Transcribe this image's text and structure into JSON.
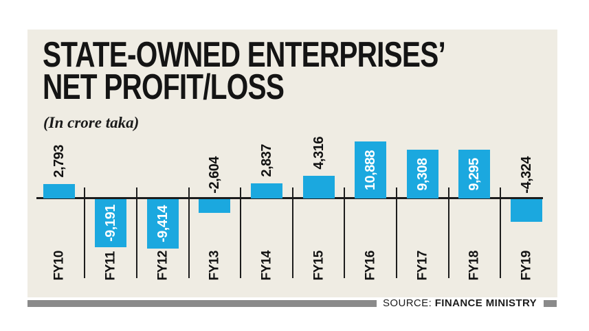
{
  "header": {
    "title_line1": "STATE-OWNED ENTERPRISES’",
    "title_line2": "NET PROFIT/LOSS",
    "subtitle": "(In crore taka)"
  },
  "source": {
    "prefix": "SOURCE:",
    "name": "FINANCE MINISTRY"
  },
  "colors": {
    "page_bg": "#ffffff",
    "panel_bg": "#EFECE3",
    "bar": "#1BA8DF",
    "axis": "#1c1c1c",
    "label_dark": "#111111",
    "label_light": "#ffffff",
    "source_bar": "#8a8a8a"
  },
  "chart_data": {
    "type": "bar",
    "title": "STATE-OWNED ENTERPRISES’ NET PROFIT/LOSS",
    "unit": "crore taka",
    "categories": [
      "FY10",
      "FY11",
      "FY12",
      "FY13",
      "FY14",
      "FY15",
      "FY16",
      "FY17",
      "FY18",
      "FY19"
    ],
    "values": [
      2793,
      -9191,
      -9414,
      -2604,
      2837,
      4316,
      10888,
      9308,
      9295,
      -4324
    ],
    "value_labels": [
      "2,793",
      "-9,191",
      "-9,414",
      "-2,604",
      "2,837",
      "4,316",
      "10,888",
      "9,308",
      "9,295",
      "-4,324"
    ],
    "baseline": 0,
    "approx_ylim": [
      -9414,
      10888
    ],
    "grid": false,
    "legend": "none",
    "value_label_orientation": "rotated-90-bottom-to-top",
    "xlabel": "",
    "ylabel": ""
  }
}
